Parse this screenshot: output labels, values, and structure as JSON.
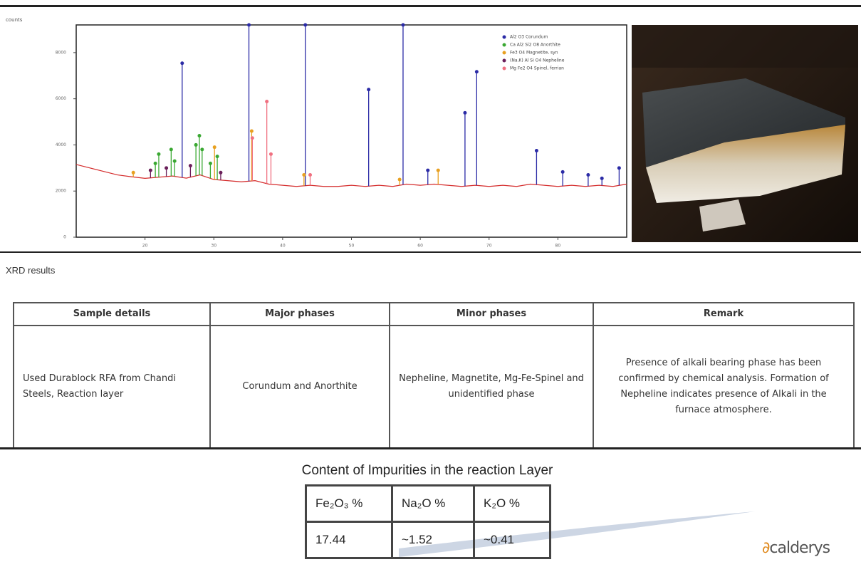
{
  "chart_data": {
    "type": "xrd",
    "y_label": "counts",
    "xlim": [
      10,
      90
    ],
    "xticks": [
      20,
      30,
      40,
      50,
      60,
      70,
      80
    ],
    "ylim": [
      0,
      9200
    ],
    "yticks": [
      0,
      2000,
      4000,
      6000,
      8000
    ],
    "pattern": {
      "color": "#d42a2a",
      "x": [
        10,
        12,
        14,
        16,
        18,
        20,
        22,
        24,
        26,
        28,
        30,
        32,
        34,
        36,
        38,
        40,
        42,
        44,
        46,
        48,
        50,
        52,
        54,
        56,
        58,
        60,
        62,
        64,
        66,
        68,
        70,
        72,
        74,
        76,
        78,
        80,
        82,
        84,
        86,
        88,
        90
      ],
      "values": [
        3150,
        3000,
        2850,
        2700,
        2620,
        2550,
        2600,
        2650,
        2560,
        2700,
        2500,
        2450,
        2400,
        2450,
        2300,
        2250,
        2200,
        2250,
        2200,
        2200,
        2250,
        2200,
        2250,
        2200,
        2300,
        2250,
        2300,
        2250,
        2200,
        2250,
        2200,
        2250,
        2200,
        2300,
        2250,
        2200,
        2250,
        2200,
        2250,
        2200,
        2300
      ]
    },
    "series": [
      {
        "name": "Al2 O3 Corundum",
        "color": "#2b2ba6",
        "x": [
          25.4,
          35.1,
          43.3,
          52.5,
          57.5,
          61.1,
          66.5,
          68.2,
          76.9,
          80.7,
          84.4,
          86.4,
          88.9
        ],
        "values": [
          7540,
          9200,
          9200,
          6400,
          9200,
          2900,
          5390,
          7170,
          3750,
          2830,
          2700,
          2550,
          3000
        ]
      },
      {
        "name": "Ca Al2 Si2 O8 Anorthite",
        "color": "#3aa832",
        "x": [
          21.5,
          22.0,
          23.8,
          24.3,
          27.4,
          27.9,
          28.3,
          29.5,
          30.5
        ],
        "values": [
          3200,
          3600,
          3800,
          3300,
          4000,
          4400,
          3800,
          3200,
          3500
        ]
      },
      {
        "name": "Fe3 O4 Magnetite, syn",
        "color": "#e8a020",
        "x": [
          18.3,
          30.1,
          35.5,
          43.1,
          57.0,
          62.6
        ],
        "values": [
          2800,
          3900,
          4600,
          2700,
          2500,
          2900
        ]
      },
      {
        "name": "(Na,K) Al Si O4 Nepheline",
        "color": "#6a1f5a",
        "x": [
          20.8,
          23.1,
          26.6,
          31.0
        ],
        "values": [
          2900,
          3000,
          3100,
          2800
        ]
      },
      {
        "name": "Mg Fe2 O4 Spinel, ferrian",
        "color": "#f07080",
        "x": [
          35.6,
          37.7,
          38.3,
          44.0
        ],
        "values": [
          4300,
          5880,
          3600,
          2700
        ]
      }
    ]
  },
  "section_label": "XRD results",
  "xrd_table": {
    "header": [
      "Sample details",
      "Major phases",
      "Minor phases",
      "Remark"
    ],
    "rows": [
      [
        "Used Durablock RFA from Chandi Steels, Reaction layer",
        "Corundum and Anorthite",
        "Nepheline, Magnetite, Mg-Fe-Spinel and unidentified phase",
        "Presence of alkali bearing phase has been confirmed by chemical analysis. Formation of Nepheline indicates presence of Alkali in the furnace atmosphere."
      ]
    ]
  },
  "impurities": {
    "title": "Content of Impurities in the reaction Layer",
    "header": [
      "Fe₂O₃ %",
      "Na₂O %",
      "K₂O %"
    ],
    "rows": [
      [
        "17.44",
        "~1.52",
        "~0.41"
      ]
    ]
  },
  "logo": {
    "text": "calderys"
  }
}
